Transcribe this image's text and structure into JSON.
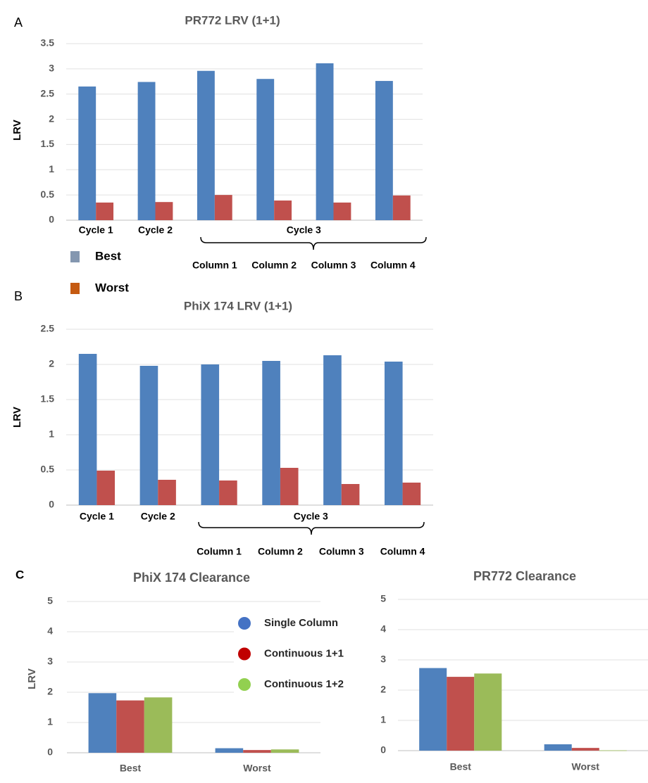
{
  "chart_data": [
    {
      "type": "bar",
      "panel": "A",
      "title": "PR772 LRV (1+1)",
      "y_label": "LRV",
      "categories": [
        "Cycle 1",
        "Cycle 2",
        "Column 1",
        "Column 2",
        "Column 3",
        "Column 4"
      ],
      "group_label": "Cycle 3",
      "series": [
        {
          "name": "Best",
          "color": "#4f81bd",
          "legend_color": "#8497b0",
          "values": [
            2.65,
            2.74,
            2.96,
            2.8,
            3.11,
            2.76
          ]
        },
        {
          "name": "Worst",
          "color": "#c0504d",
          "legend_color": "#c55a11",
          "values": [
            0.35,
            0.36,
            0.5,
            0.39,
            0.35,
            0.49
          ]
        }
      ],
      "ylim": [
        0,
        3.5
      ],
      "yticks": [
        0,
        0.5,
        1,
        1.5,
        2,
        2.5,
        3,
        3.5
      ],
      "grid": true
    },
    {
      "type": "bar",
      "panel": "B",
      "title": "PhiX 174 LRV (1+1)",
      "y_label": "LRV",
      "categories": [
        "Cycle 1",
        "Cycle 2",
        "Column 1",
        "Column 2",
        "Column 3",
        "Column 4"
      ],
      "group_label": "Cycle 3",
      "series": [
        {
          "color": "#4f81bd",
          "values": [
            2.15,
            1.98,
            2.0,
            2.05,
            2.13,
            2.04
          ]
        },
        {
          "color": "#c0504d",
          "values": [
            0.49,
            0.36,
            0.35,
            0.53,
            0.3,
            0.32
          ]
        }
      ],
      "ylim": [
        0,
        2.5
      ],
      "yticks": [
        0,
        0.5,
        1,
        1.5,
        2,
        2.5
      ],
      "grid": true
    },
    {
      "type": "bar",
      "panel": "C",
      "title": "PhiX 174 Clearance",
      "y_label": "LRV",
      "categories": [
        "Best",
        "Worst"
      ],
      "series": [
        {
          "name": "Single Column",
          "color": "#4f81bd",
          "legend_color": "#4472c4",
          "values": [
            1.97,
            0.15
          ]
        },
        {
          "name": "Continuous 1+1",
          "color": "#c0504d",
          "legend_color": "#c00000",
          "values": [
            1.73,
            0.09
          ]
        },
        {
          "name": "Continuous 1+2",
          "color": "#9bbb59",
          "legend_color": "#92d050",
          "values": [
            1.83,
            0.11
          ]
        }
      ],
      "ylim": [
        0,
        5
      ],
      "yticks": [
        0,
        1,
        2,
        3,
        4,
        5
      ],
      "grid": true
    },
    {
      "type": "bar",
      "title": "PR772 Clearance",
      "categories": [
        "Best",
        "Worst"
      ],
      "series": [
        {
          "color": "#4f81bd",
          "values": [
            2.73,
            0.21
          ]
        },
        {
          "color": "#c0504d",
          "values": [
            2.44,
            0.09
          ]
        },
        {
          "color": "#9bbb59",
          "values": [
            2.55,
            0.01
          ]
        }
      ],
      "ylim": [
        0,
        5
      ],
      "yticks": [
        0,
        1,
        2,
        3,
        4,
        5
      ],
      "grid": true
    }
  ]
}
